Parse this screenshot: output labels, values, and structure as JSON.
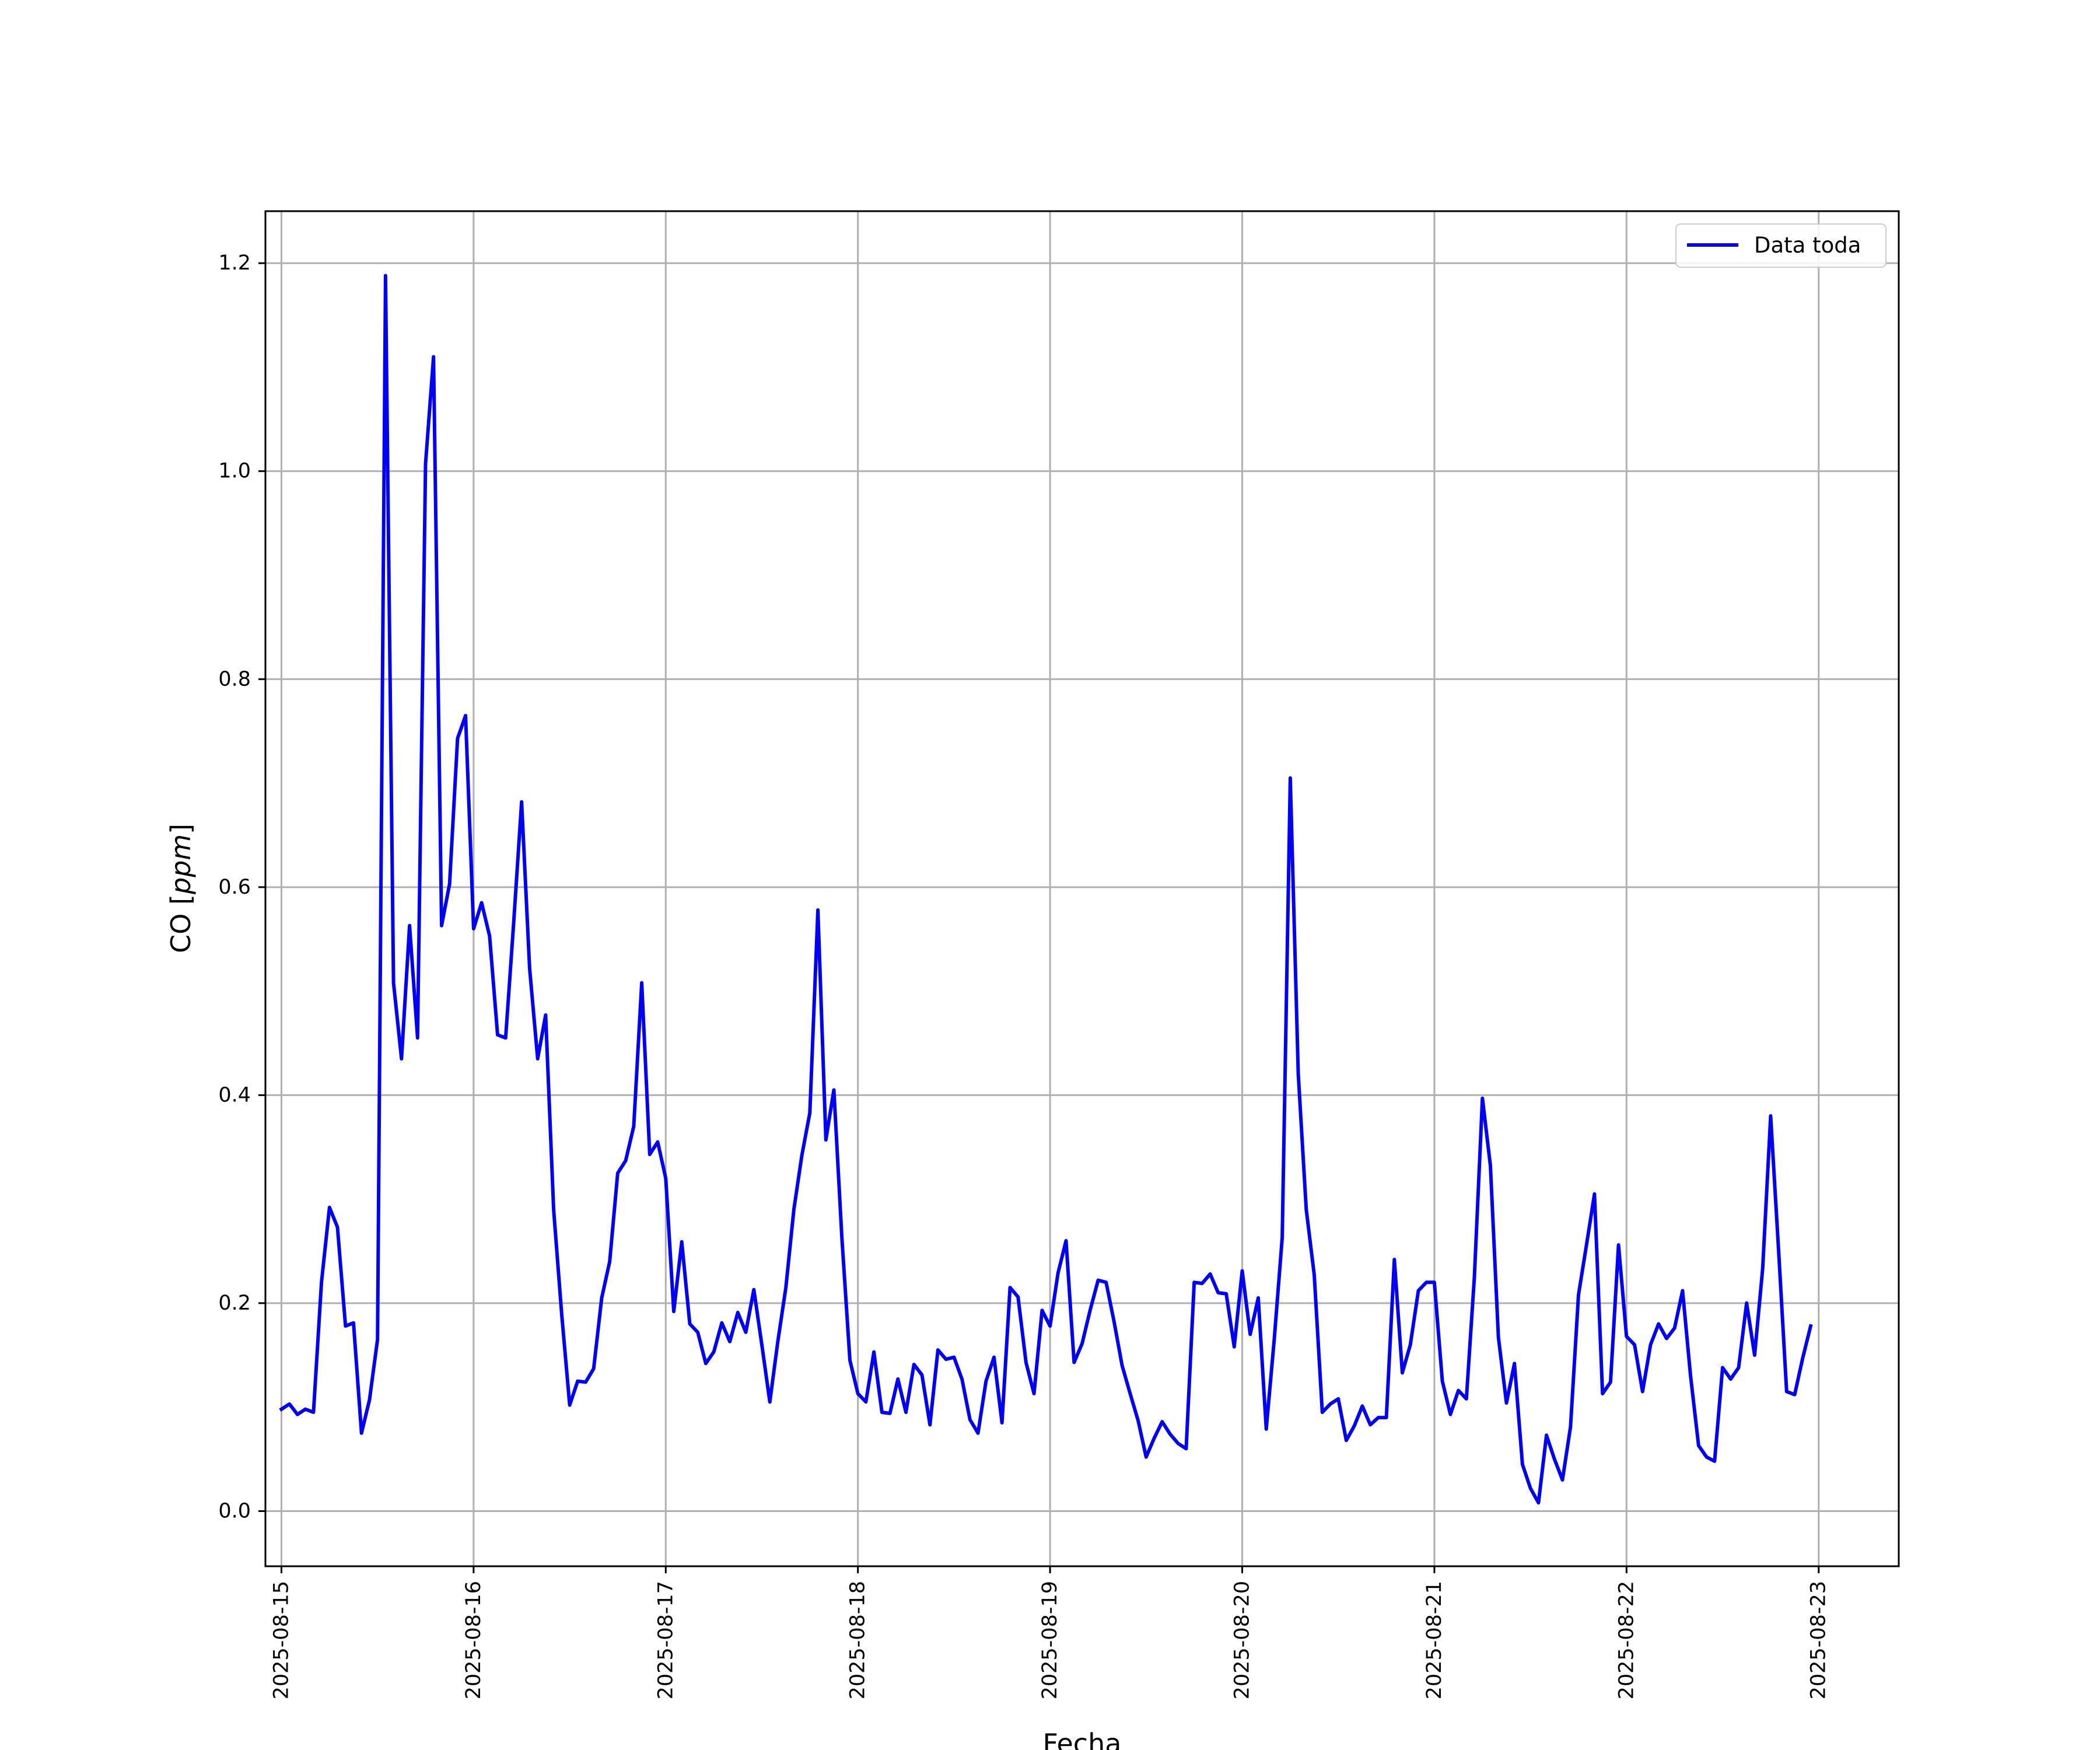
{
  "chart_data": {
    "type": "line",
    "title": "",
    "xlabel": "Fecha",
    "ylabel_main": "CO [",
    "ylabel_unit": "ppm",
    "ylabel_close": "]",
    "x_range": [
      "2025-08-14T22:00",
      "2025-08-23T10:00"
    ],
    "ylim": [
      -0.053,
      1.25
    ],
    "x_ticks": [
      "2025-08-15",
      "2025-08-16",
      "2025-08-17",
      "2025-08-18",
      "2025-08-19",
      "2025-08-20",
      "2025-08-21",
      "2025-08-22",
      "2025-08-23"
    ],
    "y_ticks": [
      "0.0",
      "0.2",
      "0.4",
      "0.6",
      "0.8",
      "1.0",
      "1.2"
    ],
    "grid": true,
    "legend_position": "top-right",
    "series": [
      {
        "name": "Data toda",
        "color": "#0000ff",
        "x_start": "2025-08-15T00:00",
        "step_hours": 1,
        "values": [
          0.098,
          0.103,
          0.093,
          0.098,
          0.095,
          0.22,
          0.292,
          0.273,
          0.178,
          0.181,
          0.075,
          0.107,
          0.165,
          1.188,
          0.508,
          0.435,
          0.563,
          0.455,
          1.007,
          1.11,
          0.563,
          0.603,
          0.743,
          0.765,
          0.56,
          0.585,
          0.553,
          0.458,
          0.455,
          0.565,
          0.682,
          0.522,
          0.435,
          0.477,
          0.29,
          0.19,
          0.102,
          0.125,
          0.124,
          0.137,
          0.205,
          0.24,
          0.325,
          0.337,
          0.37,
          0.508,
          0.343,
          0.355,
          0.32,
          0.192,
          0.259,
          0.18,
          0.172,
          0.142,
          0.153,
          0.181,
          0.163,
          0.191,
          0.172,
          0.213,
          0.16,
          0.105,
          0.163,
          0.215,
          0.29,
          0.342,
          0.383,
          0.578,
          0.357,
          0.405,
          0.263,
          0.145,
          0.113,
          0.105,
          0.153,
          0.095,
          0.094,
          0.127,
          0.095,
          0.141,
          0.131,
          0.083,
          0.155,
          0.146,
          0.148,
          0.127,
          0.088,
          0.075,
          0.125,
          0.148,
          0.085,
          0.215,
          0.206,
          0.143,
          0.113,
          0.193,
          0.178,
          0.229,
          0.26,
          0.143,
          0.161,
          0.193,
          0.222,
          0.22,
          0.182,
          0.14,
          0.113,
          0.087,
          0.052,
          0.07,
          0.086,
          0.074,
          0.065,
          0.06,
          0.22,
          0.219,
          0.228,
          0.21,
          0.209,
          0.158,
          0.231,
          0.17,
          0.205,
          0.079,
          0.165,
          0.263,
          0.705,
          0.42,
          0.29,
          0.227,
          0.095,
          0.103,
          0.108,
          0.068,
          0.082,
          0.101,
          0.083,
          0.09,
          0.09,
          0.242,
          0.133,
          0.16,
          0.212,
          0.22,
          0.22,
          0.125,
          0.093,
          0.116,
          0.108,
          0.225,
          0.397,
          0.332,
          0.167,
          0.104,
          0.142,
          0.045,
          0.022,
          0.008,
          0.073,
          0.05,
          0.03,
          0.081,
          0.208,
          0.256,
          0.305,
          0.113,
          0.124,
          0.256,
          0.168,
          0.16,
          0.115,
          0.16,
          0.18,
          0.166,
          0.176,
          0.212,
          0.13,
          0.063,
          0.052,
          0.048,
          0.138,
          0.127,
          0.138,
          0.2,
          0.15,
          0.233,
          0.38,
          0.25,
          0.115,
          0.112,
          0.147,
          0.178
        ]
      }
    ]
  }
}
